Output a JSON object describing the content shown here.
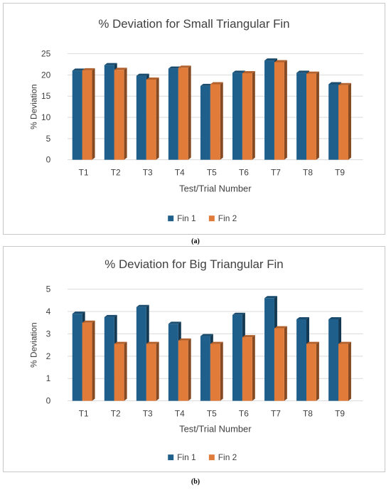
{
  "charts": [
    {
      "caption": "(a)",
      "chart_data": {
        "type": "bar",
        "title": "% Deviation for Small Triangular Fin",
        "xlabel": "Test/Trial Number",
        "ylabel": "% Deviation",
        "categories": [
          "T1",
          "T2",
          "T3",
          "T4",
          "T5",
          "T6",
          "T7",
          "T8",
          "T9"
        ],
        "series": [
          {
            "name": "Fin 1",
            "values": [
              21.0,
              22.3,
              19.8,
              21.5,
              17.4,
              20.5,
              23.4,
              20.5,
              17.8
            ],
            "color": "#1f5f8b"
          },
          {
            "name": "Fin 2",
            "values": [
              21.1,
              21.2,
              18.9,
              21.7,
              17.8,
              20.4,
              23.0,
              20.3,
              17.6
            ],
            "color": "#e07b39"
          }
        ],
        "ylim": [
          0,
          25
        ],
        "yticks": [
          "0",
          "5",
          "10",
          "15",
          "20",
          "25"
        ],
        "grid": true,
        "legend": "bottom"
      }
    },
    {
      "caption": "(b)",
      "chart_data": {
        "type": "bar",
        "title": "% Deviation for Big Triangular Fin",
        "xlabel": "Test/Trial Number",
        "ylabel": "% Deviation",
        "categories": [
          "T1",
          "T2",
          "T3",
          "T4",
          "T5",
          "T6",
          "T7",
          "T8",
          "T9"
        ],
        "series": [
          {
            "name": "Fin 1",
            "values": [
              3.9,
              3.75,
              4.2,
              3.45,
              2.9,
              3.85,
              4.6,
              3.65,
              3.65
            ],
            "color": "#1f5f8b"
          },
          {
            "name": "Fin 2",
            "values": [
              3.5,
              2.55,
              2.55,
              2.7,
              2.55,
              2.85,
              3.25,
              2.55,
              2.55
            ],
            "color": "#e07b39"
          }
        ],
        "ylim": [
          0,
          5
        ],
        "yticks": [
          "0",
          "1",
          "2",
          "3",
          "4",
          "5"
        ],
        "grid": true,
        "legend": "bottom"
      }
    }
  ]
}
